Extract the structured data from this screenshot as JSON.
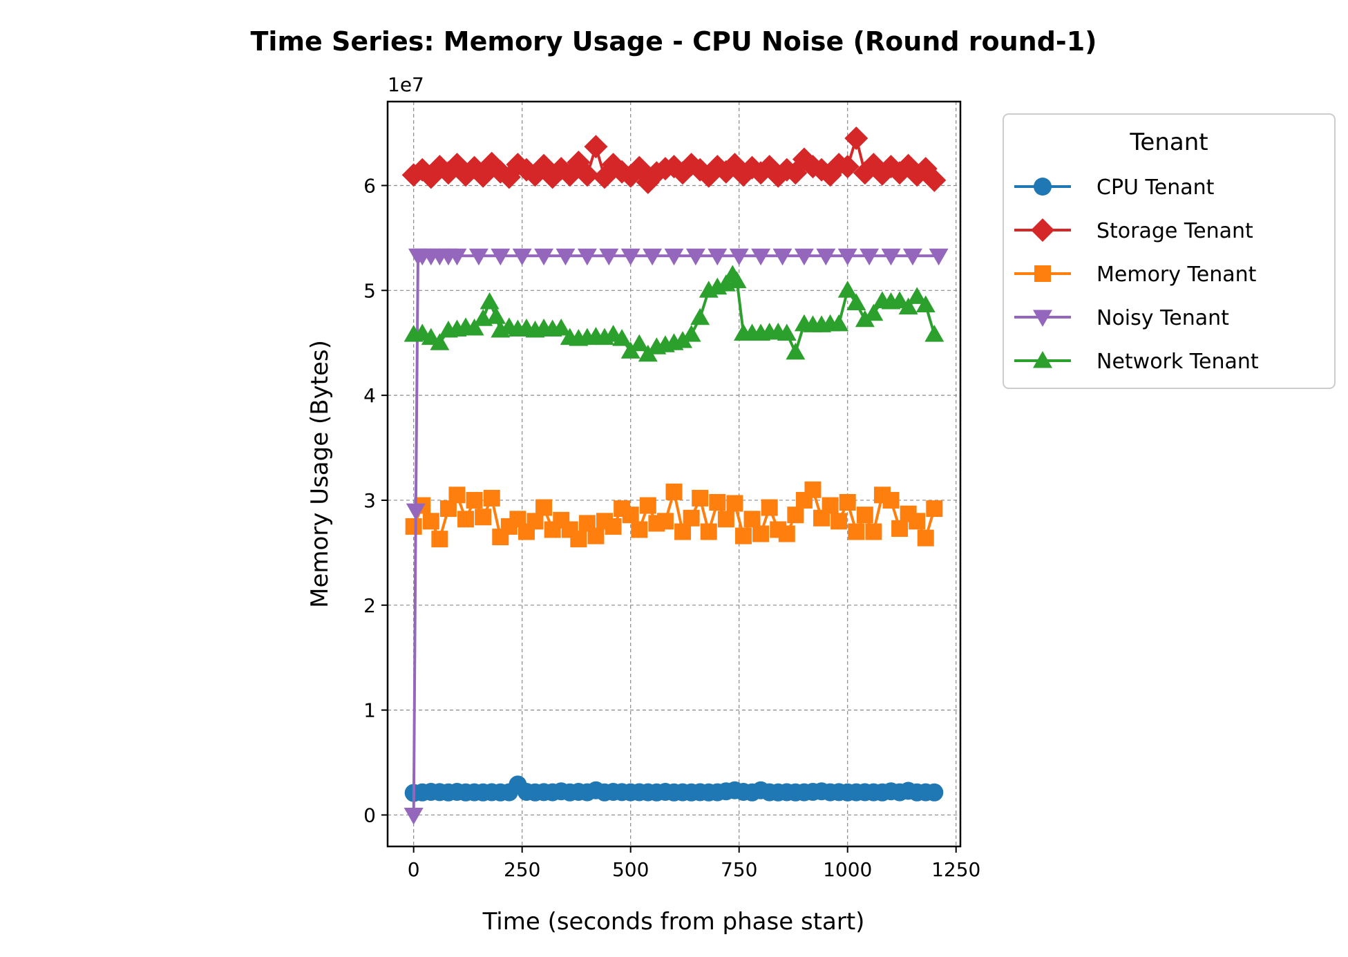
{
  "chart_data": {
    "type": "line",
    "title": "Time Series: Memory Usage - CPU Noise (Round round-1)",
    "xlabel": "Time (seconds from phase start)",
    "ylabel": "Memory Usage (Bytes)",
    "y_offset_label": "1e7",
    "y_scale_factor": 10000000,
    "xlim": [
      -60,
      1260
    ],
    "ylim": [
      -3000000,
      68000000
    ],
    "x_ticks": [
      0,
      250,
      500,
      750,
      1000,
      1250
    ],
    "x_tick_labels": [
      "0",
      "250",
      "500",
      "750",
      "1000",
      "1250"
    ],
    "y_ticks": [
      0,
      10000000,
      20000000,
      30000000,
      40000000,
      50000000,
      60000000
    ],
    "y_tick_labels": [
      "0",
      "1",
      "2",
      "3",
      "4",
      "5",
      "6"
    ],
    "grid": true,
    "legend": {
      "title": "Tenant",
      "placement": "outside-right-top"
    },
    "series": [
      {
        "name": "CPU Tenant",
        "color": "#1f77b4",
        "marker": "circle",
        "x": [
          0,
          20,
          40,
          60,
          80,
          100,
          120,
          140,
          160,
          180,
          200,
          220,
          240,
          260,
          280,
          300,
          320,
          340,
          360,
          380,
          400,
          420,
          440,
          460,
          480,
          500,
          520,
          540,
          560,
          580,
          600,
          620,
          640,
          660,
          680,
          700,
          720,
          740,
          760,
          780,
          800,
          820,
          840,
          860,
          880,
          900,
          920,
          940,
          960,
          980,
          1000,
          1020,
          1040,
          1060,
          1080,
          1100,
          1120,
          1140,
          1160,
          1180,
          1200
        ],
        "y": [
          2100000,
          2150000,
          2200000,
          2180000,
          2150000,
          2200000,
          2150000,
          2160000,
          2150000,
          2170000,
          2150000,
          2160000,
          2900000,
          2200000,
          2150000,
          2180000,
          2160000,
          2250000,
          2150000,
          2200000,
          2160000,
          2350000,
          2150000,
          2200000,
          2180000,
          2160000,
          2170000,
          2160000,
          2150000,
          2200000,
          2150000,
          2160000,
          2150000,
          2170000,
          2150000,
          2160000,
          2250000,
          2350000,
          2200000,
          2150000,
          2350000,
          2160000,
          2150000,
          2170000,
          2150000,
          2160000,
          2200000,
          2250000,
          2160000,
          2180000,
          2150000,
          2160000,
          2170000,
          2160000,
          2150000,
          2250000,
          2160000,
          2300000,
          2150000,
          2160000,
          2150000
        ]
      },
      {
        "name": "Storage Tenant",
        "color": "#d62728",
        "marker": "diamond",
        "x": [
          0,
          20,
          40,
          60,
          80,
          100,
          120,
          140,
          160,
          180,
          200,
          220,
          240,
          260,
          280,
          300,
          320,
          340,
          360,
          380,
          400,
          420,
          440,
          460,
          480,
          500,
          520,
          540,
          560,
          580,
          600,
          620,
          640,
          660,
          680,
          700,
          720,
          740,
          760,
          780,
          800,
          820,
          840,
          860,
          880,
          900,
          920,
          940,
          960,
          980,
          1000,
          1020,
          1040,
          1060,
          1080,
          1100,
          1120,
          1140,
          1160,
          1180,
          1200
        ],
        "y": [
          61000000,
          61500000,
          60800000,
          61800000,
          61200000,
          62000000,
          61000000,
          61700000,
          60900000,
          62100000,
          61300000,
          60800000,
          62000000,
          61500000,
          61000000,
          61900000,
          60800000,
          61600000,
          61000000,
          62200000,
          61000000,
          63700000,
          60800000,
          62000000,
          61300000,
          60900000,
          61700000,
          60300000,
          61200000,
          61600000,
          61800000,
          61200000,
          62000000,
          61500000,
          60900000,
          61800000,
          61300000,
          62000000,
          61000000,
          61700000,
          61200000,
          61800000,
          60900000,
          61500000,
          61200000,
          62500000,
          61800000,
          61500000,
          61000000,
          62000000,
          61800000,
          64500000,
          61200000,
          62000000,
          61100000,
          61800000,
          61200000,
          61900000,
          61000000,
          61600000,
          60500000
        ]
      },
      {
        "name": "Memory Tenant",
        "color": "#ff7f0e",
        "marker": "square",
        "x": [
          0,
          20,
          40,
          60,
          80,
          100,
          120,
          140,
          160,
          180,
          200,
          220,
          240,
          260,
          280,
          300,
          320,
          340,
          360,
          380,
          400,
          420,
          440,
          460,
          480,
          500,
          520,
          540,
          560,
          580,
          600,
          620,
          640,
          660,
          680,
          700,
          720,
          740,
          760,
          780,
          800,
          820,
          840,
          860,
          880,
          900,
          920,
          940,
          960,
          980,
          1000,
          1020,
          1040,
          1060,
          1080,
          1100,
          1120,
          1140,
          1160,
          1180,
          1200
        ],
        "y": [
          27500000,
          29500000,
          28000000,
          26300000,
          29200000,
          30500000,
          28200000,
          30000000,
          28400000,
          30200000,
          26500000,
          27500000,
          28200000,
          27000000,
          28000000,
          29300000,
          27200000,
          28100000,
          27200000,
          26300000,
          27800000,
          26600000,
          28000000,
          27500000,
          29200000,
          28600000,
          27200000,
          29500000,
          27800000,
          28000000,
          30800000,
          27000000,
          28300000,
          30200000,
          27000000,
          29800000,
          28200000,
          29700000,
          26600000,
          28200000,
          26800000,
          29300000,
          27200000,
          26800000,
          28600000,
          30000000,
          31000000,
          28300000,
          29500000,
          28000000,
          29800000,
          27000000,
          28600000,
          27000000,
          30500000,
          30000000,
          27300000,
          28700000,
          28000000,
          26400000,
          29200000
        ]
      },
      {
        "name": "Noisy Tenant",
        "color": "#9467bd",
        "marker": "triangle-down",
        "x": [
          0,
          5,
          10,
          20,
          40,
          60,
          80,
          100,
          150,
          200,
          250,
          300,
          350,
          400,
          450,
          500,
          550,
          600,
          650,
          700,
          750,
          800,
          850,
          900,
          950,
          1000,
          1050,
          1100,
          1150,
          1210
        ],
        "y": [
          0,
          29000000,
          53300000,
          53300000,
          53300000,
          53300000,
          53300000,
          53300000,
          53300000,
          53300000,
          53300000,
          53300000,
          53300000,
          53300000,
          53300000,
          53300000,
          53300000,
          53300000,
          53300000,
          53300000,
          53300000,
          53300000,
          53300000,
          53300000,
          53300000,
          53300000,
          53300000,
          53300000,
          53300000,
          53300000
        ]
      },
      {
        "name": "Network Tenant",
        "color": "#2ca02c",
        "marker": "triangle-up",
        "x": [
          0,
          20,
          40,
          60,
          80,
          100,
          120,
          140,
          160,
          175,
          190,
          200,
          220,
          240,
          260,
          280,
          300,
          320,
          340,
          360,
          380,
          400,
          420,
          440,
          460,
          480,
          500,
          520,
          540,
          560,
          580,
          600,
          620,
          640,
          660,
          680,
          700,
          720,
          735,
          745,
          760,
          780,
          800,
          820,
          840,
          860,
          880,
          900,
          920,
          940,
          960,
          980,
          1000,
          1020,
          1040,
          1060,
          1080,
          1100,
          1120,
          1140,
          1160,
          1180,
          1200
        ],
        "y": [
          45800000,
          45900000,
          45500000,
          45000000,
          46200000,
          46300000,
          46500000,
          46400000,
          47300000,
          48900000,
          47500000,
          46200000,
          46500000,
          46300000,
          46400000,
          46200000,
          46400000,
          46300000,
          46400000,
          45500000,
          45400000,
          45500000,
          45600000,
          45500000,
          45800000,
          45400000,
          44200000,
          44900000,
          43900000,
          44600000,
          44800000,
          45000000,
          45200000,
          45800000,
          47400000,
          50000000,
          50300000,
          50600000,
          51500000,
          50900000,
          45900000,
          45900000,
          45900000,
          46000000,
          46000000,
          45900000,
          44100000,
          46800000,
          46700000,
          46700000,
          46800000,
          46800000,
          50000000,
          48800000,
          47200000,
          47800000,
          49000000,
          48900000,
          49000000,
          48400000,
          49400000,
          48600000,
          45800000
        ]
      }
    ]
  }
}
